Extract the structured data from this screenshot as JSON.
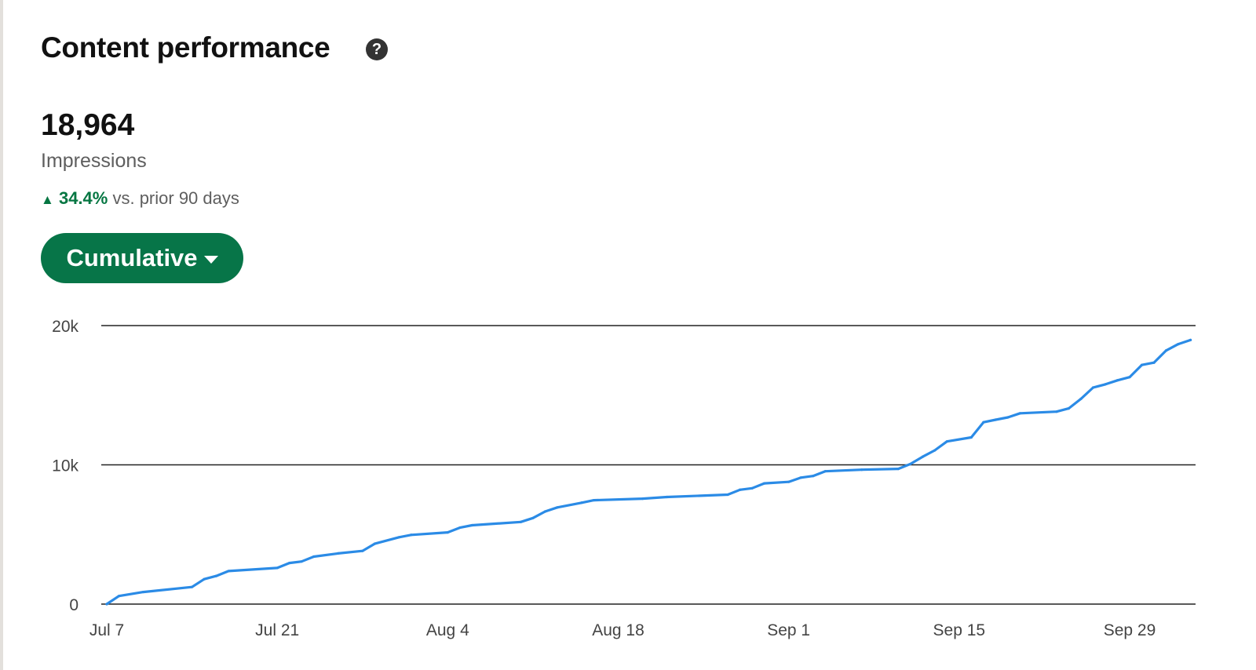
{
  "header": {
    "title": "Content performance",
    "help_icon": "question-circle-icon"
  },
  "summary": {
    "value": "18,964",
    "metric": "Impressions",
    "change": "34.4%",
    "change_suffix": "vs. prior 90 days",
    "change_direction": "up",
    "change_color": "#057642"
  },
  "controls": {
    "mode_label": "Cumulative",
    "mode_icon": "caret-down-icon",
    "button_color": "#077548"
  },
  "chart_data": {
    "type": "line",
    "title": "",
    "xlabel": "",
    "ylabel": "",
    "ylim": [
      0,
      20000
    ],
    "yticks": [
      {
        "value": 0,
        "label": "0"
      },
      {
        "value": 10000,
        "label": "10k"
      },
      {
        "value": 20000,
        "label": "20k"
      }
    ],
    "xticks": [
      "Jul 7",
      "Jul 21",
      "Aug 4",
      "Aug 18",
      "Sep 1",
      "Sep 15",
      "Sep 29"
    ],
    "grid": "horizontal",
    "line_color": "#2b8be6",
    "series": [
      {
        "points": [
          [
            "Jul 7",
            0
          ],
          [
            "Jul 8",
            580
          ],
          [
            "Jul 10",
            870
          ],
          [
            "Jul 14",
            1230
          ],
          [
            "Jul 15",
            1790
          ],
          [
            "Jul 16",
            2020
          ],
          [
            "Jul 17",
            2370
          ],
          [
            "Jul 21",
            2600
          ],
          [
            "Jul 22",
            2950
          ],
          [
            "Jul 23",
            3060
          ],
          [
            "Jul 24",
            3410
          ],
          [
            "Jul 26",
            3640
          ],
          [
            "Jul 28",
            3820
          ],
          [
            "Jul 29",
            4330
          ],
          [
            "Jul 31",
            4800
          ],
          [
            "Aug 1",
            4970
          ],
          [
            "Aug 4",
            5150
          ],
          [
            "Aug 5",
            5490
          ],
          [
            "Aug 6",
            5660
          ],
          [
            "Aug 10",
            5900
          ],
          [
            "Aug 11",
            6180
          ],
          [
            "Aug 12",
            6650
          ],
          [
            "Aug 13",
            6940
          ],
          [
            "Aug 15",
            7280
          ],
          [
            "Aug 16",
            7460
          ],
          [
            "Aug 20",
            7570
          ],
          [
            "Aug 22",
            7690
          ],
          [
            "Aug 27",
            7860
          ],
          [
            "Aug 28",
            8210
          ],
          [
            "Aug 29",
            8320
          ],
          [
            "Aug 30",
            8670
          ],
          [
            "Sep 1",
            8780
          ],
          [
            "Sep 2",
            9080
          ],
          [
            "Sep 3",
            9200
          ],
          [
            "Sep 4",
            9540
          ],
          [
            "Sep 7",
            9650
          ],
          [
            "Sep 10",
            9710
          ],
          [
            "Sep 11",
            10060
          ],
          [
            "Sep 12",
            10580
          ],
          [
            "Sep 13",
            11040
          ],
          [
            "Sep 14",
            11680
          ],
          [
            "Sep 16",
            11970
          ],
          [
            "Sep 17",
            13060
          ],
          [
            "Sep 18",
            13240
          ],
          [
            "Sep 19",
            13410
          ],
          [
            "Sep 20",
            13700
          ],
          [
            "Sep 23",
            13820
          ],
          [
            "Sep 24",
            14050
          ],
          [
            "Sep 25",
            14740
          ],
          [
            "Sep 26",
            15550
          ],
          [
            "Sep 27",
            15780
          ],
          [
            "Sep 28",
            16070
          ],
          [
            "Sep 29",
            16300
          ],
          [
            "Sep 30",
            17170
          ],
          [
            "Oct 1",
            17340
          ],
          [
            "Oct 2",
            18210
          ],
          [
            "Oct 3",
            18670
          ],
          [
            "Oct 4",
            18964
          ]
        ]
      }
    ]
  }
}
